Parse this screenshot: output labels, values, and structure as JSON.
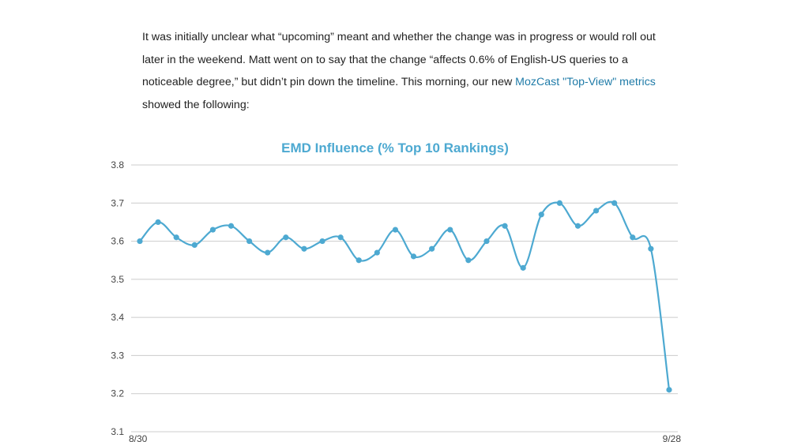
{
  "article": {
    "text_before_link": "It was initially unclear what “upcoming” meant and whether the change was in progress or would roll out later in the weekend. Matt went on to say that the change “affects 0.6% of English-US queries to a noticeable degree,” but didn’t pin down the timeline. This morning, our new ",
    "link_text": "MozCast \"Top-View\" metrics",
    "text_after_link": " showed the following:"
  },
  "chart_data": {
    "type": "line",
    "title": "EMD Influence (% Top 10 Rankings)",
    "xlabel": "",
    "ylabel": "",
    "ylim": [
      3.1,
      3.8
    ],
    "yticks": [
      3.1,
      3.2,
      3.3,
      3.4,
      3.5,
      3.6,
      3.7,
      3.8
    ],
    "x_tick_labels": [
      "8/30",
      "9/28"
    ],
    "grid": true,
    "colors": {
      "line": "#4da9d1",
      "title": "#4da9d1",
      "grid": "#cccccc",
      "tick_text": "#444444"
    },
    "series": [
      {
        "values": [
          3.6,
          3.65,
          3.61,
          3.59,
          3.63,
          3.64,
          3.6,
          3.57,
          3.61,
          3.58,
          3.6,
          3.61,
          3.55,
          3.57,
          3.63,
          3.56,
          3.58,
          3.63,
          3.55,
          3.6,
          3.64,
          3.53,
          3.67,
          3.7,
          3.64,
          3.68,
          3.7,
          3.61,
          3.58,
          3.21
        ]
      }
    ]
  }
}
